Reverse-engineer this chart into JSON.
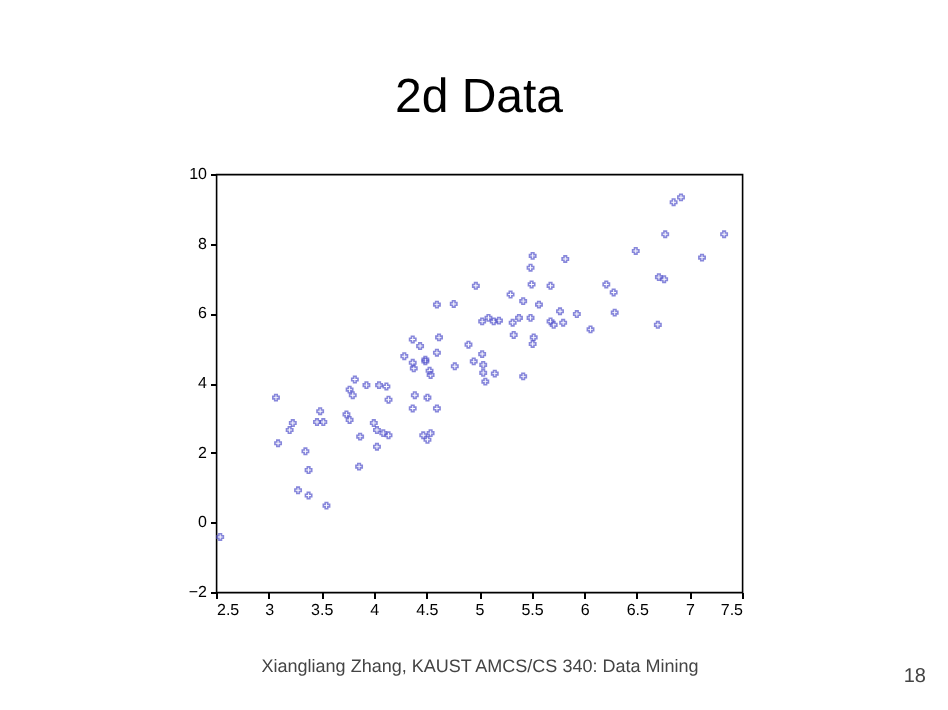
{
  "chart_data": {
    "type": "scatter",
    "title": "2d Data",
    "x": [
      2.54,
      3.07,
      3.09,
      3.2,
      3.23,
      3.35,
      3.38,
      3.28,
      3.38,
      3.55,
      3.49,
      3.46,
      3.52,
      3.74,
      3.77,
      3.77,
      3.82,
      3.8,
      3.93,
      3.87,
      3.86,
      4.0,
      4.03,
      4.03,
      4.09,
      4.14,
      4.05,
      4.12,
      4.14,
      4.29,
      4.37,
      4.44,
      4.37,
      4.38,
      4.39,
      4.37,
      4.49,
      4.53,
      4.54,
      4.51,
      4.47,
      4.51,
      4.54,
      4.49,
      4.6,
      4.62,
      4.6,
      4.6,
      4.76,
      4.77,
      4.9,
      4.95,
      4.97,
      5.03,
      5.04,
      5.04,
      5.06,
      5.15,
      5.03,
      5.09,
      5.14,
      5.19,
      5.3,
      5.32,
      5.33,
      5.38,
      5.42,
      5.42,
      5.49,
      5.5,
      5.49,
      5.51,
      5.52,
      5.51,
      5.57,
      5.68,
      5.68,
      5.71,
      5.77,
      5.8,
      5.82,
      5.93,
      6.06,
      6.21,
      6.28,
      6.29,
      6.49,
      6.7,
      6.71,
      6.76,
      6.77,
      6.85,
      6.92,
      7.12,
      7.33
    ],
    "series": [
      {
        "color": "#5555cc",
        "values": [
          -0.42,
          3.58,
          2.27,
          2.65,
          2.85,
          2.04,
          1.5,
          0.92,
          0.77,
          0.48,
          3.19,
          2.88,
          2.88,
          3.1,
          2.94,
          3.81,
          4.1,
          3.65,
          3.94,
          2.46,
          1.6,
          2.85,
          2.65,
          2.17,
          2.56,
          2.5,
          3.94,
          3.9,
          3.52,
          4.77,
          5.25,
          5.06,
          4.58,
          4.42,
          3.65,
          3.27,
          4.62,
          4.35,
          4.23,
          3.58,
          2.5,
          2.37,
          2.56,
          4.67,
          4.87,
          5.31,
          6.25,
          3.27,
          6.27,
          4.48,
          5.1,
          4.62,
          6.79,
          4.83,
          4.52,
          4.29,
          4.04,
          4.27,
          5.77,
          5.87,
          5.77,
          5.79,
          6.54,
          5.73,
          5.38,
          5.87,
          6.35,
          4.19,
          5.87,
          6.83,
          7.31,
          7.65,
          5.31,
          5.12,
          6.25,
          6.79,
          5.77,
          5.67,
          6.06,
          5.73,
          7.56,
          5.98,
          5.54,
          6.83,
          6.6,
          6.02,
          7.79,
          5.67,
          7.04,
          6.98,
          8.27,
          9.19,
          9.33,
          7.6,
          8.27
        ]
      }
    ],
    "xlim": [
      2.5,
      7.5
    ],
    "xticks": [
      2.5,
      3,
      3.5,
      4,
      4.5,
      5,
      5.5,
      6,
      6.5,
      7,
      7.5
    ],
    "ylim": [
      -2,
      10
    ],
    "yticks": [
      -2,
      0,
      2,
      4,
      6,
      8,
      10
    ],
    "grid": false,
    "legend": false,
    "marker": "cross",
    "annotations": [
      "Xiangliang Zhang, KAUST AMCS/CS 340: Data Mining",
      "18"
    ]
  }
}
